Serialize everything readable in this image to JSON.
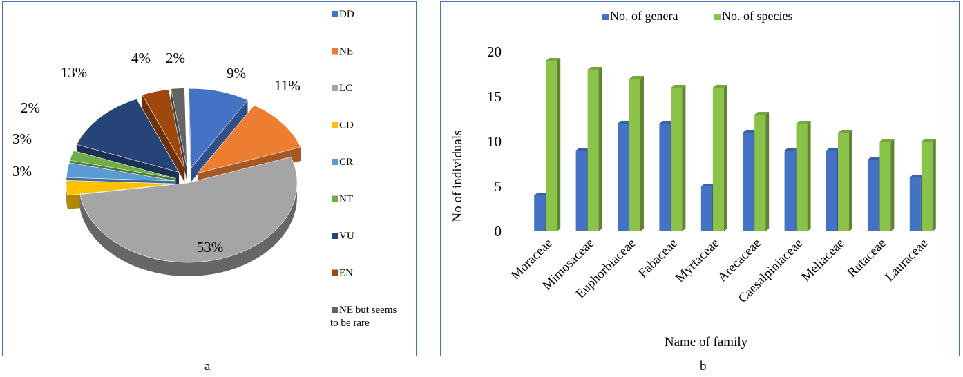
{
  "chart_data": [
    {
      "type": "pie",
      "labels": [
        "DD",
        "NE",
        "LC",
        "CD",
        "CR",
        "NT",
        "VU",
        "EN",
        "NE but seems to be rare"
      ],
      "values": [
        9,
        11,
        53,
        3,
        3,
        2,
        13,
        4,
        2
      ],
      "value_labels": [
        "9%",
        "11%",
        "53%",
        "3%",
        "3%",
        "2%",
        "13%",
        "4%",
        "2%"
      ],
      "colors": [
        "#4472c4",
        "#ed7d31",
        "#a5a5a5",
        "#ffc000",
        "#5b9bd5",
        "#70ad47",
        "#264478",
        "#9e480e",
        "#636363"
      ],
      "legend_position": "right",
      "exploded": true,
      "style": "3d"
    },
    {
      "type": "bar",
      "categories": [
        "Moraceae",
        "Mimosaceae",
        "Euphorbiaceae",
        "Fabaceae",
        "Myrtaceae",
        "Arecaceae",
        "Caesalpiniaceae",
        "Meliaceae",
        "Rutaceae",
        "Lauraceae"
      ],
      "series": [
        {
          "name": "No. of genera",
          "color": "#4472c4",
          "values": [
            4,
            9,
            12,
            12,
            5,
            11,
            9,
            9,
            8,
            6
          ]
        },
        {
          "name": "No. of species",
          "color": "#8bc34a",
          "values": [
            19,
            18,
            17,
            16,
            16,
            13,
            12,
            11,
            10,
            10
          ]
        }
      ],
      "xlabel": "Name of family",
      "ylabel": "No of individuals",
      "ylim": [
        0,
        20
      ],
      "yticks": [
        0,
        5,
        10,
        15,
        20
      ],
      "grid": false,
      "legend_position": "top",
      "style": "3d"
    }
  ],
  "captions": {
    "a": "a",
    "b": "b"
  }
}
